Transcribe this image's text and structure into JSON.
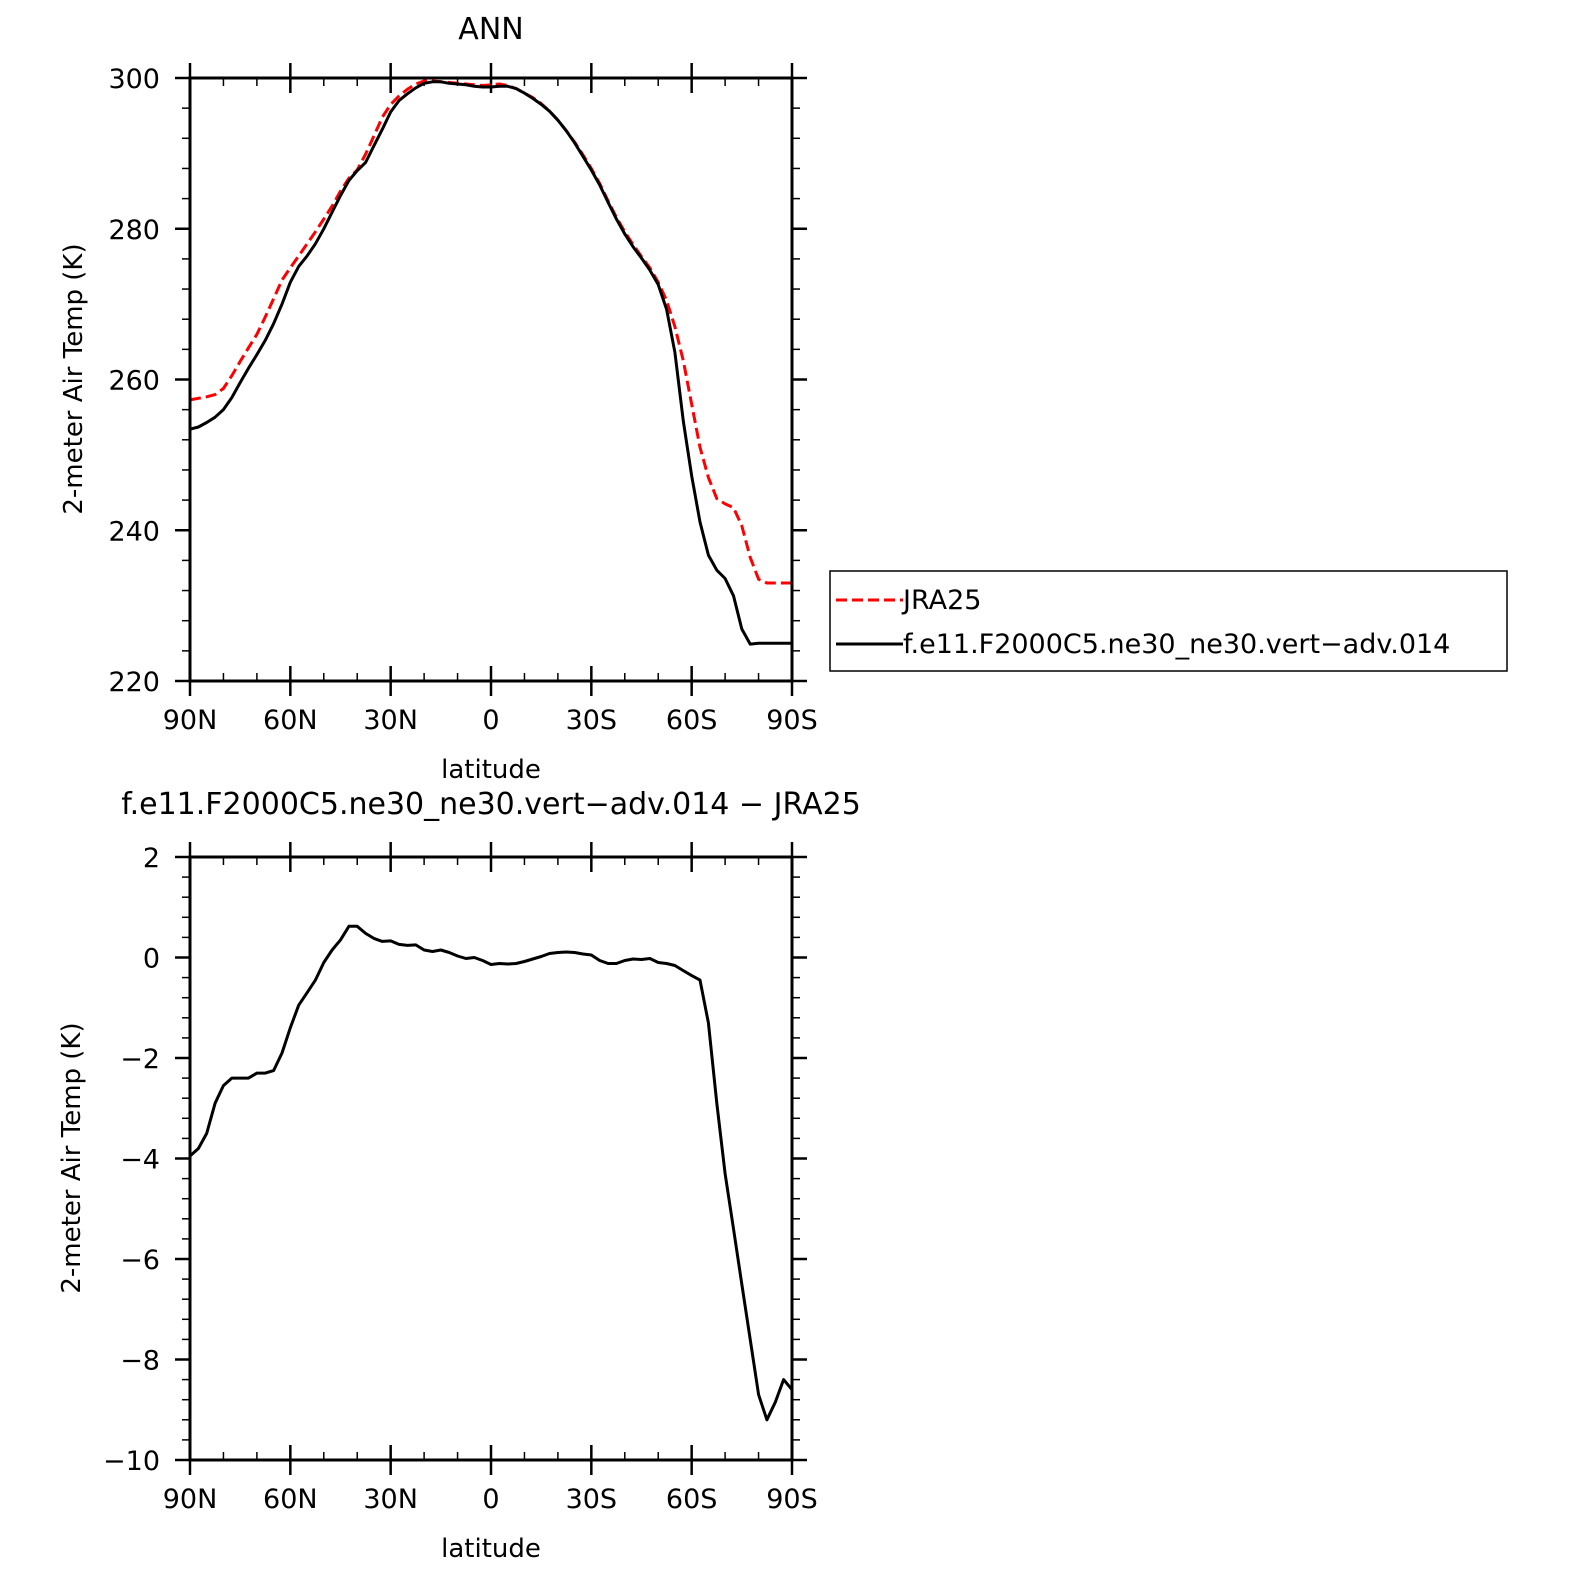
{
  "chart_data": [
    {
      "type": "line",
      "title": "ANN",
      "xlabel": "latitude",
      "ylabel": "2-meter Air Temp (K)",
      "xlim": [
        90,
        -90
      ],
      "ylim": [
        220,
        300
      ],
      "xticks": [
        90,
        60,
        30,
        0,
        -30,
        -60,
        -90
      ],
      "xtick_labels": [
        "90N",
        "60N",
        "30N",
        "0",
        "30S",
        "60S",
        "90S"
      ],
      "yticks": [
        220,
        240,
        260,
        280,
        300
      ],
      "ytick_labels": [
        "220",
        "240",
        "260",
        "280",
        "300"
      ],
      "grid": false,
      "legend": {
        "placement": "right",
        "entries": [
          {
            "label": "JRA25",
            "color": "#ff0000",
            "dash": "dashed"
          },
          {
            "label": "f.e11.F2000C5.ne30_ne30.vert−adv.014",
            "color": "#000000",
            "dash": "solid"
          }
        ]
      },
      "x": [
        90,
        87.5,
        85,
        82.5,
        80,
        77.5,
        75,
        72.5,
        70,
        67.5,
        65,
        62.5,
        60,
        57.5,
        55,
        52.5,
        50,
        47.5,
        45,
        42.5,
        40,
        37.5,
        35,
        32.5,
        30,
        27.5,
        25,
        22.5,
        20,
        17.5,
        15,
        12.5,
        10,
        7.5,
        5,
        2.5,
        0,
        -2.5,
        -5,
        -7.5,
        -10,
        -12.5,
        -15,
        -17.5,
        -20,
        -22.5,
        -25,
        -27.5,
        -30,
        -32.5,
        -35,
        -37.5,
        -40,
        -42.5,
        -45,
        -47.5,
        -50,
        -52.5,
        -55,
        -57.5,
        -60,
        -62.5,
        -65,
        -67.5,
        -70,
        -72.5,
        -75,
        -77.5,
        -80,
        -82.5,
        -85,
        -87.5,
        -90
      ],
      "series": [
        {
          "name": "JRA25",
          "color": "#ff0000",
          "dash": "dashed",
          "values": [
            257.3,
            257.5,
            257.7,
            258.0,
            258.8,
            260.5,
            262.4,
            264.2,
            266.0,
            268.3,
            270.7,
            273.2,
            274.8,
            276.4,
            278.0,
            279.6,
            281.3,
            283.0,
            285.0,
            286.7,
            287.8,
            289.9,
            292.3,
            294.8,
            296.5,
            297.6,
            298.5,
            299.2,
            299.6,
            299.6,
            299.5,
            299.4,
            299.3,
            299.2,
            299.1,
            299.0,
            299.1,
            299.2,
            299.0,
            298.6,
            298.0,
            297.4,
            296.6,
            295.6,
            294.4,
            293.0,
            291.5,
            289.8,
            288.0,
            286.0,
            283.7,
            281.5,
            279.6,
            277.9,
            276.3,
            274.8,
            272.9,
            270.5,
            267.0,
            262.5,
            256.7,
            251.0,
            247.0,
            244.2,
            243.5,
            243.0,
            240.6,
            236.4,
            233.5,
            233,
            233,
            233,
            233
          ]
        },
        {
          "name": "f.e11.F2000C5.ne30_ne30.vert−adv.014",
          "color": "#000000",
          "dash": "solid",
          "values": [
            253.4,
            253.7,
            254.3,
            255.0,
            256.0,
            257.6,
            259.6,
            261.5,
            263.3,
            265.2,
            267.4,
            270.0,
            272.9,
            275.0,
            276.4,
            278.0,
            280.0,
            282.2,
            284.4,
            286.4,
            287.7,
            288.8,
            291.0,
            293.2,
            295.5,
            297.0,
            297.9,
            298.7,
            299.3,
            299.5,
            299.5,
            299.3,
            299.2,
            299.1,
            298.9,
            298.8,
            298.8,
            298.9,
            298.9,
            298.6,
            298.0,
            297.3,
            296.5,
            295.6,
            294.4,
            293.0,
            291.4,
            289.6,
            287.8,
            285.8,
            283.5,
            281.3,
            279.3,
            277.6,
            276.1,
            274.5,
            272.6,
            269.3,
            263.6,
            254.5,
            247.2,
            241.1,
            236.7,
            234.7,
            233.6,
            231.3,
            226.9,
            224.9,
            225,
            225,
            225,
            225,
            225
          ]
        }
      ]
    },
    {
      "type": "line",
      "title": "f.e11.F2000C5.ne30_ne30.vert−adv.014 − JRA25",
      "xlabel": "latitude",
      "ylabel": "2-meter Air Temp (K)",
      "xlim": [
        90,
        -90
      ],
      "ylim": [
        -10,
        2
      ],
      "xticks": [
        90,
        60,
        30,
        0,
        -30,
        -60,
        -90
      ],
      "xtick_labels": [
        "90N",
        "60N",
        "30N",
        "0",
        "30S",
        "60S",
        "90S"
      ],
      "yticks": [
        -10,
        -8,
        -6,
        -4,
        -2,
        0,
        2
      ],
      "ytick_labels": [
        "−10",
        "−8",
        "−6",
        "−4",
        "−2",
        "0",
        "2"
      ],
      "grid": false,
      "x": [
        90,
        87.5,
        85,
        82.5,
        80,
        77.5,
        75,
        72.5,
        70,
        67.5,
        65,
        62.5,
        60,
        57.5,
        55,
        52.5,
        50,
        47.5,
        45,
        42.5,
        40,
        37.5,
        35,
        32.5,
        30,
        27.5,
        25,
        22.5,
        20,
        17.5,
        15,
        12.5,
        10,
        7.5,
        5,
        2.5,
        0,
        -2.5,
        -5,
        -7.5,
        -10,
        -12.5,
        -15,
        -17.5,
        -20,
        -22.5,
        -25,
        -27.5,
        -30,
        -32.5,
        -35,
        -37.5,
        -40,
        -42.5,
        -45,
        -47.5,
        -50,
        -52.5,
        -55,
        -57.5,
        -60,
        -62.5,
        -65,
        -67.5,
        -70,
        -72.5,
        -75,
        -77.5,
        -80,
        -82.5,
        -85,
        -87.5,
        -90
      ],
      "series": [
        {
          "name": "",
          "color": "#000000",
          "dash": "solid",
          "values": [
            -3.95,
            -3.8,
            -3.5,
            -2.9,
            -2.55,
            -2.4,
            -2.4,
            -2.4,
            -2.3,
            -2.3,
            -2.25,
            -1.9,
            -1.4,
            -0.95,
            -0.7,
            -0.45,
            -0.1,
            0.15,
            0.35,
            0.62,
            0.62,
            0.48,
            0.38,
            0.32,
            0.33,
            0.26,
            0.24,
            0.25,
            0.15,
            0.12,
            0.15,
            0.1,
            0.03,
            -0.02,
            0.0,
            -0.06,
            -0.14,
            -0.12,
            -0.13,
            -0.12,
            -0.08,
            -0.03,
            0.02,
            0.08,
            0.1,
            0.11,
            0.1,
            0.07,
            0.05,
            -0.06,
            -0.12,
            -0.12,
            -0.06,
            -0.03,
            -0.04,
            -0.02,
            -0.1,
            -0.12,
            -0.16,
            -0.26,
            -0.36,
            -0.45,
            -1.3,
            -2.9,
            -4.3,
            -5.4,
            -6.5,
            -7.6,
            -8.7,
            -9.2,
            -8.85,
            -8.4,
            -8.6
          ]
        }
      ]
    }
  ]
}
